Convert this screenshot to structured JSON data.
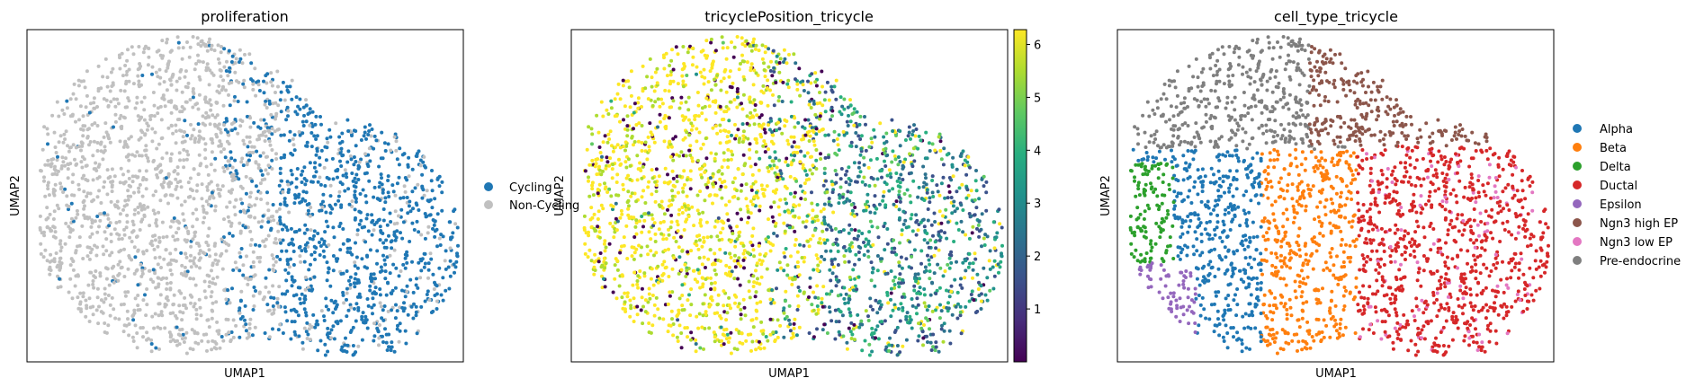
{
  "chart_data": [
    {
      "type": "scatter",
      "title": "proliferation",
      "xlabel": "UMAP1",
      "ylabel": "UMAP2",
      "grid": false,
      "legend_placement": "right",
      "legend": [
        {
          "label": "Cycling",
          "color": "#1f77b4"
        },
        {
          "label": "Non-Cycling",
          "color": "#c0c0c0"
        }
      ]
    },
    {
      "type": "scatter",
      "title": "tricyclePosition_tricycle",
      "xlabel": "UMAP1",
      "ylabel": "UMAP2",
      "grid": false,
      "colorbar": {
        "colormap": "viridis",
        "range": [
          0,
          6.28
        ],
        "ticks": [
          "1",
          "2",
          "3",
          "4",
          "5",
          "6"
        ]
      }
    },
    {
      "type": "scatter",
      "title": "cell_type_tricycle",
      "xlabel": "UMAP1",
      "ylabel": "UMAP2",
      "grid": false,
      "legend_placement": "right",
      "legend": [
        {
          "label": "Alpha",
          "color": "#1f77b4"
        },
        {
          "label": "Beta",
          "color": "#ff7f0e"
        },
        {
          "label": "Delta",
          "color": "#2ca02c"
        },
        {
          "label": "Ductal",
          "color": "#d62728"
        },
        {
          "label": "Epsilon",
          "color": "#9467bd"
        },
        {
          "label": "Ngn3 high EP",
          "color": "#8c564b"
        },
        {
          "label": "Ngn3 low EP",
          "color": "#e377c2"
        },
        {
          "label": "Pre-endocrine",
          "color": "#7f7f7f"
        }
      ]
    }
  ]
}
